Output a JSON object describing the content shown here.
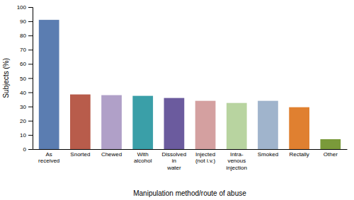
{
  "chart_data": {
    "type": "bar",
    "categories": [
      "As\nreceived",
      "Snorted",
      "Chewed",
      "With\nalcohol",
      "Dissolved\nin\nwater",
      "Injected\n(not i.v.)",
      "Intra-\nvenous\ninjection",
      "Smoked",
      "Rectally",
      "Other"
    ],
    "values": [
      91,
      38.5,
      38,
      37.5,
      36,
      34,
      32.5,
      34,
      29.5,
      7
    ],
    "colors": [
      "#5b7db1",
      "#b85c4b",
      "#b0a0c8",
      "#3a9fa8",
      "#6b5b9e",
      "#d4a0a0",
      "#b8d4a0",
      "#a0b4cc",
      "#e08030",
      "#7a9a3a"
    ],
    "xlabel": "Manipulation method/route of abuse",
    "ylabel": "Subjects (%)",
    "ylim": [
      0,
      100
    ],
    "yticks": [
      0,
      10,
      20,
      30,
      40,
      50,
      60,
      70,
      80,
      90,
      100
    ],
    "grid": false
  }
}
